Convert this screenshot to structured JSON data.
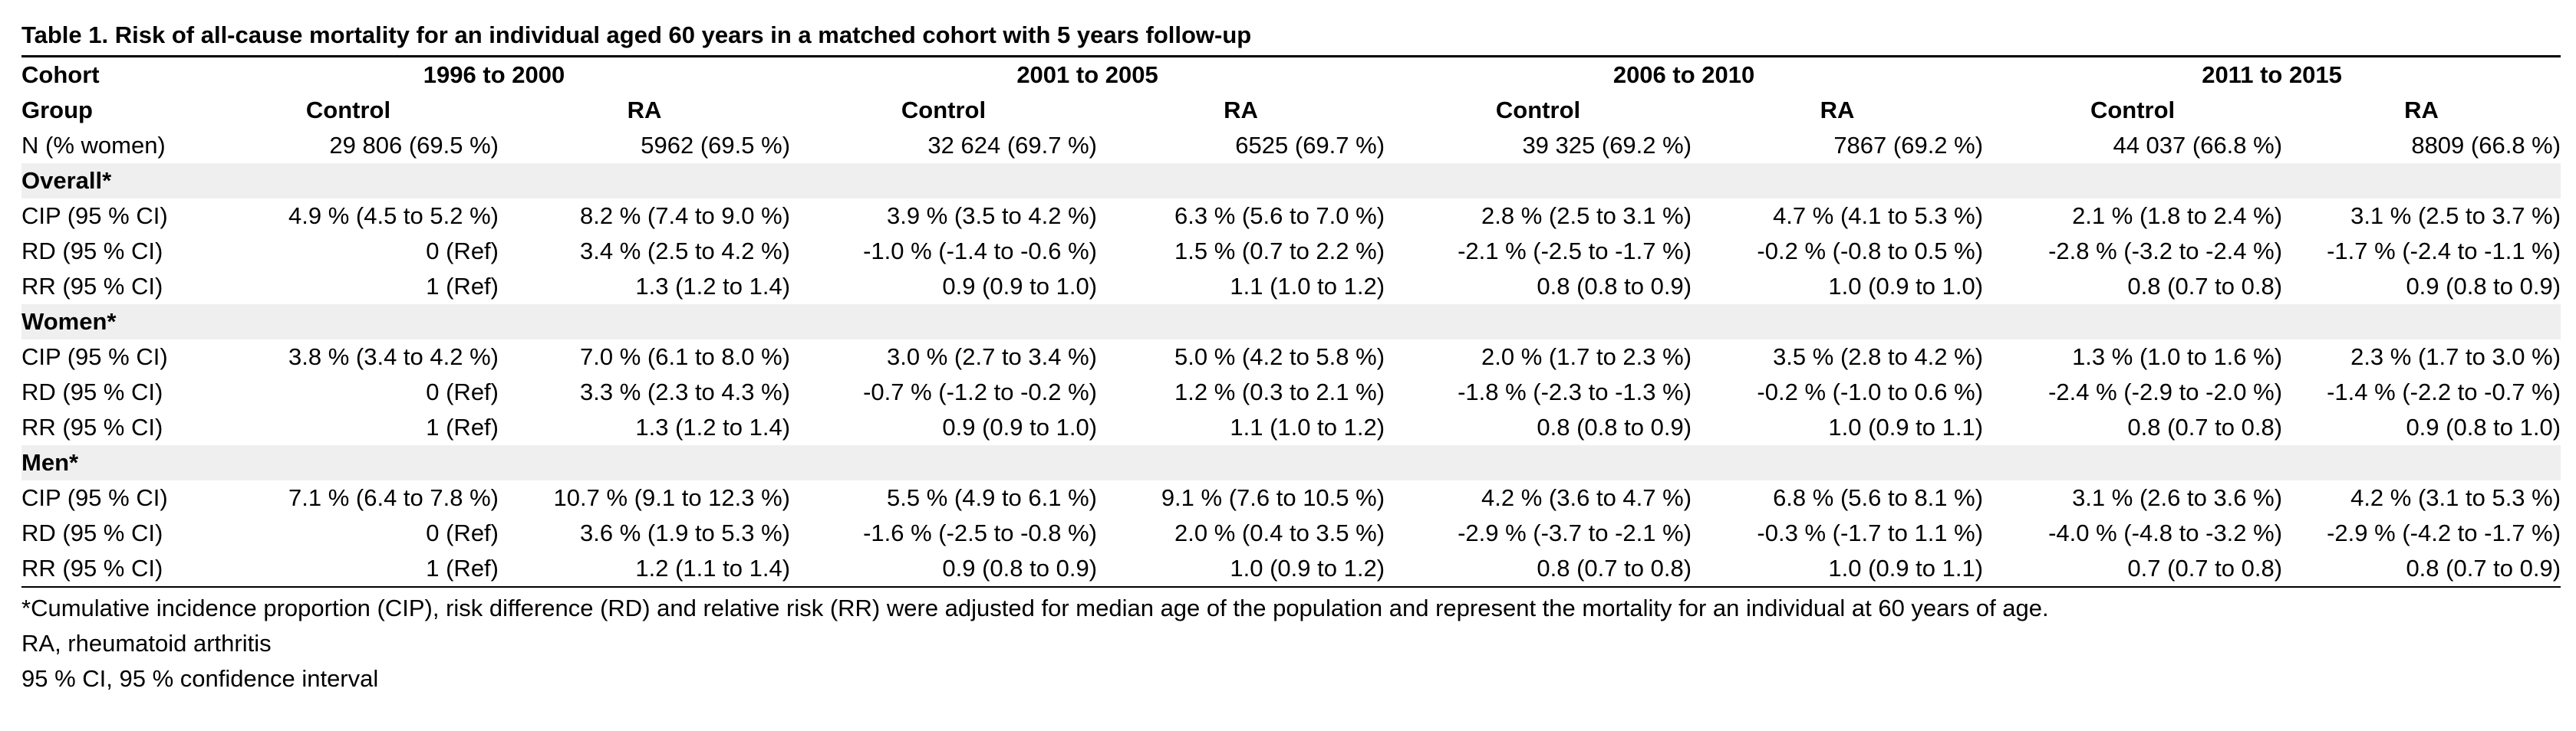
{
  "title": "Table 1. Risk of all-cause mortality for an individual aged 60 years in a matched cohort with 5 years follow-up",
  "header": {
    "cohort_label": "Cohort",
    "group_label": "Group",
    "periods": [
      "1996 to 2000",
      "2001 to 2005",
      "2006 to 2010",
      "2011 to 2015"
    ],
    "groups": [
      "Control",
      "RA",
      "Control",
      "RA",
      "Control",
      "RA",
      "Control",
      "RA"
    ],
    "n_label": "N (% women)",
    "n_values": [
      "29 806 (69.5 %)",
      "5962 (69.5 %)",
      "32 624 (69.7 %)",
      "6525 (69.7 %)",
      "39 325 (69.2 %)",
      "7867 (69.2 %)",
      "44 037 (66.8 %)",
      "8809 (66.8 %)"
    ]
  },
  "sections": [
    {
      "name": "Overall*",
      "rows": [
        {
          "label": "CIP (95 % CI)",
          "values": [
            "4.9 % (4.5 to 5.2 %)",
            "8.2 % (7.4 to 9.0 %)",
            "3.9 % (3.5 to 4.2 %)",
            "6.3 % (5.6 to 7.0 %)",
            "2.8 % (2.5 to 3.1 %)",
            "4.7 % (4.1 to 5.3 %)",
            "2.1 % (1.8 to 2.4 %)",
            "3.1 % (2.5 to 3.7 %)"
          ]
        },
        {
          "label": "RD (95 % CI)",
          "values": [
            "0 (Ref)",
            "3.4 % (2.5 to 4.2 %)",
            "-1.0 % (-1.4 to -0.6 %)",
            "1.5 % (0.7 to 2.2 %)",
            "-2.1 % (-2.5 to -1.7 %)",
            "-0.2 % (-0.8 to 0.5 %)",
            "-2.8 % (-3.2 to -2.4 %)",
            "-1.7 % (-2.4 to -1.1 %)"
          ]
        },
        {
          "label": "RR (95 % CI)",
          "values": [
            "1 (Ref)",
            "1.3 (1.2 to 1.4)",
            "0.9 (0.9 to 1.0)",
            "1.1 (1.0 to 1.2)",
            "0.8 (0.8 to 0.9)",
            "1.0 (0.9 to 1.0)",
            "0.8 (0.7 to 0.8)",
            "0.9 (0.8 to 0.9)"
          ]
        }
      ]
    },
    {
      "name": "Women*",
      "rows": [
        {
          "label": "CIP (95 % CI)",
          "values": [
            "3.8 % (3.4 to 4.2 %)",
            "7.0 % (6.1 to 8.0 %)",
            "3.0 % (2.7 to 3.4 %)",
            "5.0 % (4.2 to 5.8 %)",
            "2.0 % (1.7 to 2.3 %)",
            "3.5 % (2.8 to 4.2 %)",
            "1.3 % (1.0 to 1.6 %)",
            "2.3 % (1.7 to 3.0 %)"
          ]
        },
        {
          "label": "RD (95 % CI)",
          "values": [
            "0 (Ref)",
            "3.3 % (2.3 to 4.3 %)",
            "-0.7 % (-1.2 to -0.2 %)",
            "1.2 % (0.3 to 2.1 %)",
            "-1.8 % (-2.3 to -1.3 %)",
            "-0.2 % (-1.0 to 0.6 %)",
            "-2.4 % (-2.9 to -2.0 %)",
            "-1.4 % (-2.2 to -0.7 %)"
          ]
        },
        {
          "label": "RR (95 % CI)",
          "values": [
            "1 (Ref)",
            "1.3 (1.2 to 1.4)",
            "0.9 (0.9 to 1.0)",
            "1.1 (1.0 to 1.2)",
            "0.8 (0.8 to 0.9)",
            "1.0 (0.9 to 1.1)",
            "0.8 (0.7 to 0.8)",
            "0.9 (0.8 to 1.0)"
          ]
        }
      ]
    },
    {
      "name": "Men*",
      "rows": [
        {
          "label": "CIP (95 % CI)",
          "values": [
            "7.1 % (6.4 to 7.8 %)",
            "10.7 % (9.1 to 12.3 %)",
            "5.5 % (4.9 to 6.1 %)",
            "9.1 % (7.6 to 10.5 %)",
            "4.2 % (3.6 to 4.7 %)",
            "6.8 % (5.6 to 8.1 %)",
            "3.1 % (2.6 to 3.6 %)",
            "4.2 % (3.1 to 5.3 %)"
          ]
        },
        {
          "label": "RD (95 % CI)",
          "values": [
            "0 (Ref)",
            "3.6 % (1.9 to 5.3 %)",
            "-1.6 % (-2.5 to -0.8 %)",
            "2.0 % (0.4 to 3.5 %)",
            "-2.9 % (-3.7 to -2.1 %)",
            "-0.3 % (-1.7 to 1.1 %)",
            "-4.0 % (-4.8 to -3.2 %)",
            "-2.9 % (-4.2 to -1.7 %)"
          ]
        },
        {
          "label": "RR (95 % CI)",
          "values": [
            "1 (Ref)",
            "1.2 (1.1 to 1.4)",
            "0.9 (0.8 to 0.9)",
            "1.0 (0.9 to 1.2)",
            "0.8 (0.7 to 0.8)",
            "1.0 (0.9 to 1.1)",
            "0.7 (0.7 to 0.8)",
            "0.8 (0.7 to 0.9)"
          ]
        }
      ]
    }
  ],
  "footnotes": [
    "*Cumulative incidence proportion (CIP), risk difference (RD) and relative risk (RR) were adjusted for median age of the population and represent the mortality for an individual at 60 years of age.",
    "RA, rheumatoid arthritis",
    "95 % CI, 95 % confidence interval"
  ]
}
